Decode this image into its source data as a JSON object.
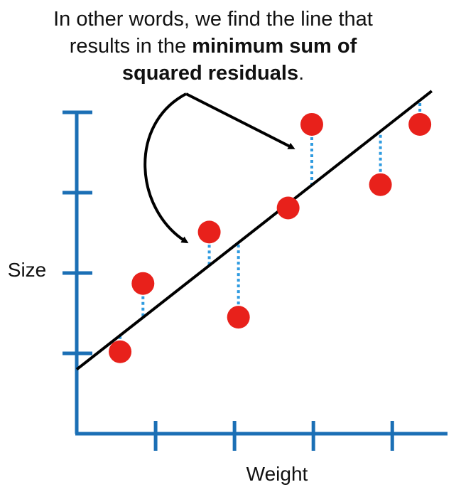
{
  "caption": {
    "line1": "In other words, we find the line that",
    "line2_pre": "results in the ",
    "line2_bold": "minimum sum of",
    "line3_bold": "squared residuals",
    "line3_post": "."
  },
  "chart_data": {
    "type": "scatter",
    "xlabel": "Weight",
    "ylabel": "Size",
    "xlim": [
      0,
      4.7
    ],
    "ylim": [
      0,
      4
    ],
    "x_ticks": [
      1,
      2,
      3,
      4
    ],
    "y_ticks": [
      1,
      2,
      3,
      4
    ],
    "grid": false,
    "points": [
      {
        "x": 0.55,
        "y": 1.02
      },
      {
        "x": 0.84,
        "y": 1.87
      },
      {
        "x": 1.68,
        "y": 2.51
      },
      {
        "x": 2.05,
        "y": 1.45
      },
      {
        "x": 2.68,
        "y": 2.81
      },
      {
        "x": 2.98,
        "y": 3.85
      },
      {
        "x": 3.85,
        "y": 3.1
      },
      {
        "x": 4.35,
        "y": 3.85
      }
    ],
    "fit_line": {
      "slope": 0.77,
      "intercept": 0.8
    },
    "residual_color": "#2f9be0",
    "point_color": "#e8211b",
    "axis_color": "#1b6fb5",
    "line_color": "#000000"
  }
}
